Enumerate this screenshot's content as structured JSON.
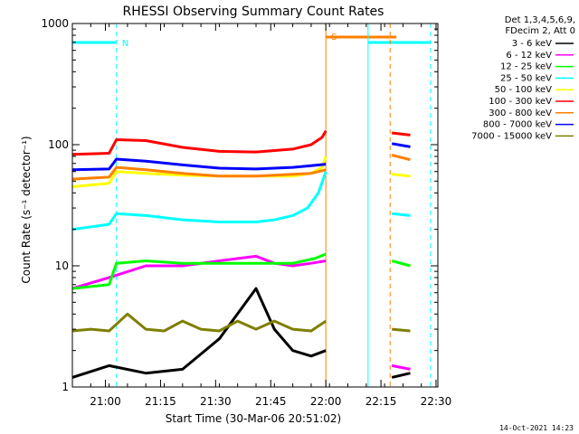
{
  "chart_data": {
    "type": "line",
    "title": "RHESSI Observing Summary Count Rates",
    "xlabel": "Start Time (30-Mar-06 20:51:02)",
    "ylabel": "Count Rate (s⁻¹ detector⁻¹)",
    "yscale": "log",
    "ylim": [
      1,
      1000
    ],
    "xlim_minutes_after_start": [
      0,
      99.5
    ],
    "x_tick_labels": [
      "21:00",
      "21:15",
      "21:30",
      "21:45",
      "22:00",
      "22:15",
      "22:30"
    ],
    "x_tick_minutes": [
      9,
      24,
      39,
      54,
      69,
      84,
      99
    ],
    "y_tick_labels": [
      "1",
      "10",
      "100",
      "1000"
    ],
    "y_tick_values": [
      1,
      10,
      100,
      1000
    ],
    "legend_header": [
      "Det 1,3,4,5,6,9,",
      "FDecim 2, Att 0"
    ],
    "legend_position": "right",
    "series": [
      {
        "name": "3 - 6 keV",
        "color": "#000000",
        "segments": [
          {
            "x": [
              0,
              10,
              20,
              30,
              40,
              50,
              55,
              60,
              65,
              69
            ],
            "y": [
              1.2,
              1.5,
              1.3,
              1.4,
              2.5,
              6.5,
              3.0,
              2.0,
              1.8,
              2.0
            ]
          },
          {
            "x": [
              87,
              92
            ],
            "y": [
              1.2,
              1.3
            ]
          }
        ]
      },
      {
        "name": "6 - 12 keV",
        "color": "#ff00ff",
        "segments": [
          {
            "x": [
              0,
              10,
              20,
              30,
              40,
              50,
              55,
              60,
              65,
              69
            ],
            "y": [
              6.5,
              8.0,
              10.0,
              10.0,
              11.0,
              12.0,
              10.5,
              10.0,
              10.5,
              11.0
            ]
          },
          {
            "x": [
              87,
              92
            ],
            "y": [
              1.5,
              1.4
            ]
          }
        ]
      },
      {
        "name": "12 - 25 keV",
        "color": "#00ff00",
        "segments": [
          {
            "x": [
              0,
              10,
              12,
              20,
              30,
              40,
              50,
              60,
              66,
              69
            ],
            "y": [
              6.5,
              7.0,
              10.5,
              11.0,
              10.5,
              10.5,
              10.5,
              10.5,
              11.5,
              12.5
            ]
          },
          {
            "x": [
              87,
              92
            ],
            "y": [
              11.0,
              10.0
            ]
          }
        ]
      },
      {
        "name": "25 - 50 keV",
        "color": "#00ffff",
        "segments": [
          {
            "x": [
              0,
              10,
              12,
              20,
              30,
              40,
              50,
              55,
              60,
              64,
              67,
              69
            ],
            "y": [
              20,
              22,
              27,
              26,
              24,
              23,
              23,
              24,
              26,
              30,
              40,
              60
            ]
          },
          {
            "x": [
              87,
              92
            ],
            "y": [
              27,
              26
            ]
          }
        ]
      },
      {
        "name": "50 - 100 keV",
        "color": "#ffff00",
        "segments": [
          {
            "x": [
              0,
              10,
              12,
              20,
              30,
              40,
              50,
              60,
              65,
              68,
              69
            ],
            "y": [
              45,
              48,
              60,
              58,
              56,
              55,
              55,
              55,
              58,
              65,
              80
            ]
          },
          {
            "x": [
              87,
              92
            ],
            "y": [
              57,
              55
            ]
          }
        ]
      },
      {
        "name": "100 - 300 keV",
        "color": "#ff0000",
        "segments": [
          {
            "x": [
              0,
              10,
              12,
              20,
              30,
              40,
              50,
              60,
              65,
              68,
              69
            ],
            "y": [
              83,
              85,
              110,
              108,
              95,
              88,
              87,
              92,
              100,
              115,
              130
            ]
          },
          {
            "x": [
              87,
              92
            ],
            "y": [
              125,
              120
            ]
          }
        ]
      },
      {
        "name": "300 - 800 keV",
        "color": "#ff7f00",
        "segments": [
          {
            "x": [
              0,
              10,
              12,
              20,
              30,
              40,
              50,
              60,
              65,
              69
            ],
            "y": [
              52,
              54,
              65,
              62,
              58,
              55,
              55,
              57,
              58,
              62
            ]
          },
          {
            "x": [
              87,
              92
            ],
            "y": [
              82,
              75
            ]
          }
        ]
      },
      {
        "name": "800 - 7000 keV",
        "color": "#0000ff",
        "segments": [
          {
            "x": [
              0,
              10,
              12,
              20,
              30,
              40,
              50,
              60,
              65,
              69
            ],
            "y": [
              62,
              63,
              76,
              73,
              68,
              64,
              63,
              65,
              67,
              69
            ]
          },
          {
            "x": [
              87,
              92
            ],
            "y": [
              102,
              96
            ]
          }
        ]
      },
      {
        "name": "7000 - 15000 keV",
        "color": "#7f7f00",
        "segments": [
          {
            "x": [
              0,
              5,
              10,
              15,
              20,
              25,
              30,
              35,
              40,
              45,
              50,
              55,
              60,
              65,
              69
            ],
            "y": [
              2.9,
              3.0,
              2.9,
              4.0,
              3.0,
              2.9,
              3.5,
              3.0,
              2.9,
              3.5,
              3.0,
              3.5,
              3.0,
              2.9,
              3.5
            ]
          },
          {
            "x": [
              87,
              92
            ],
            "y": [
              3.0,
              2.9
            ]
          }
        ]
      }
    ],
    "annotations": [
      {
        "label": "N",
        "color": "#00ffff",
        "x": 12,
        "line": "dashed"
      },
      {
        "label": "S",
        "color": "#ff7f00",
        "x": 69,
        "line": "solid"
      },
      {
        "label": "",
        "color": "#00ffff",
        "x": 80.5,
        "line": "solid"
      },
      {
        "label": "",
        "color": "#ff7f00",
        "x": 86.5,
        "line": "dashed"
      },
      {
        "label": "",
        "color": "#00ffff",
        "x": 97.5,
        "line": "dashed"
      }
    ],
    "footer": "14-Oct-2021 14:23"
  }
}
